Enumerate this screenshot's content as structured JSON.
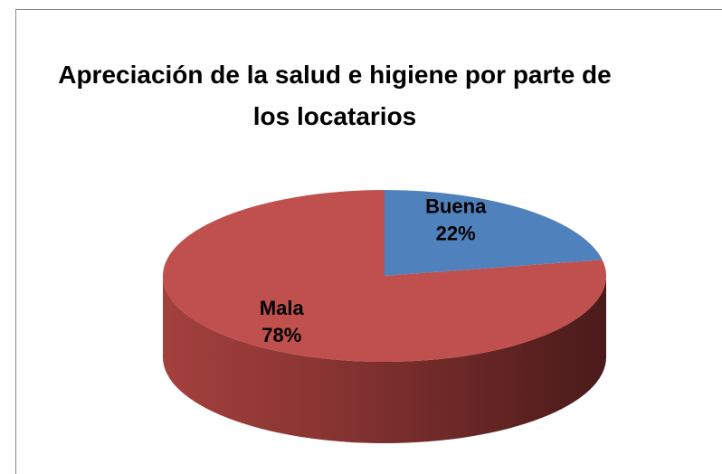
{
  "chart_data": {
    "type": "pie3d",
    "title": "Apreciación de la salud e higiene por parte de los locatarios",
    "categories": [
      "Buena",
      "Mala"
    ],
    "values": [
      22,
      78
    ],
    "value_labels": [
      "22%",
      "78%"
    ],
    "colors": [
      "#4f81bd",
      "#c0504d"
    ]
  }
}
